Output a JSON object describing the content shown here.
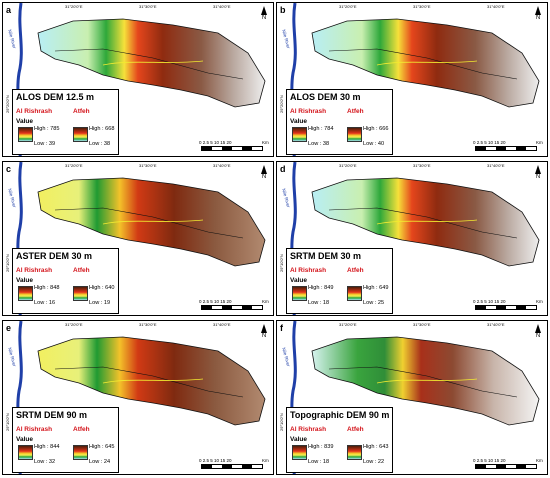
{
  "colors": {
    "ramp": [
      "#4a1e0a",
      "#9e2a10",
      "#e3311c",
      "#f7d12c",
      "#f3ec52",
      "#24a63a",
      "#a8e0f2"
    ],
    "river": "#1f3fa8",
    "basin_name": "#d4141b"
  },
  "common": {
    "basin_1": "Al Rishrash",
    "basin_2": "Atfeh",
    "value_label": "Value",
    "north_label": "N",
    "scale_ticks": "0  2.5  5     10      15     20",
    "scale_unit": "Km",
    "lon_1": "31°20'0\"E",
    "lon_2": "31°30'0\"E",
    "lon_3": "31°40'0\"E",
    "lat_1": "29°20'0\"N",
    "lat_2": "29°10'0\"N",
    "river_label": "Nile River"
  },
  "panels": [
    {
      "letter": "a",
      "title": "ALOS DEM 12.5  m",
      "b1_high": "High : 785",
      "b1_low": "Low : 39",
      "b2_high": "High : 668",
      "b2_low": "Low : 38",
      "style": "blue"
    },
    {
      "letter": "b",
      "title": "ALOS DEM 30 m",
      "b1_high": "High : 784",
      "b1_low": "Low : 38",
      "b2_high": "High : 666",
      "b2_low": "Low : 40",
      "style": "blue"
    },
    {
      "letter": "c",
      "title": "ASTER DEM 30 m",
      "b1_high": "High : 848",
      "b1_low": "Low : 16",
      "b2_high": "High : 640",
      "b2_low": "Low : 19",
      "style": "green"
    },
    {
      "letter": "d",
      "title": "SRTM DEM 30 m",
      "b1_high": "High : 849",
      "b1_low": "Low : 18",
      "b2_high": "High : 649",
      "b2_low": "Low : 25",
      "style": "blue"
    },
    {
      "letter": "e",
      "title": "SRTM DEM 90 m",
      "b1_high": "High : 844",
      "b1_low": "Low : 32",
      "b2_high": "High : 645",
      "b2_low": "Low : 24",
      "style": "green"
    },
    {
      "letter": "f",
      "title": "Topographic DEM 90 m",
      "b1_high": "High : 839",
      "b1_low": "Low : 18",
      "b2_high": "High : 643",
      "b2_low": "Low : 22",
      "style": "bluegreen"
    }
  ]
}
